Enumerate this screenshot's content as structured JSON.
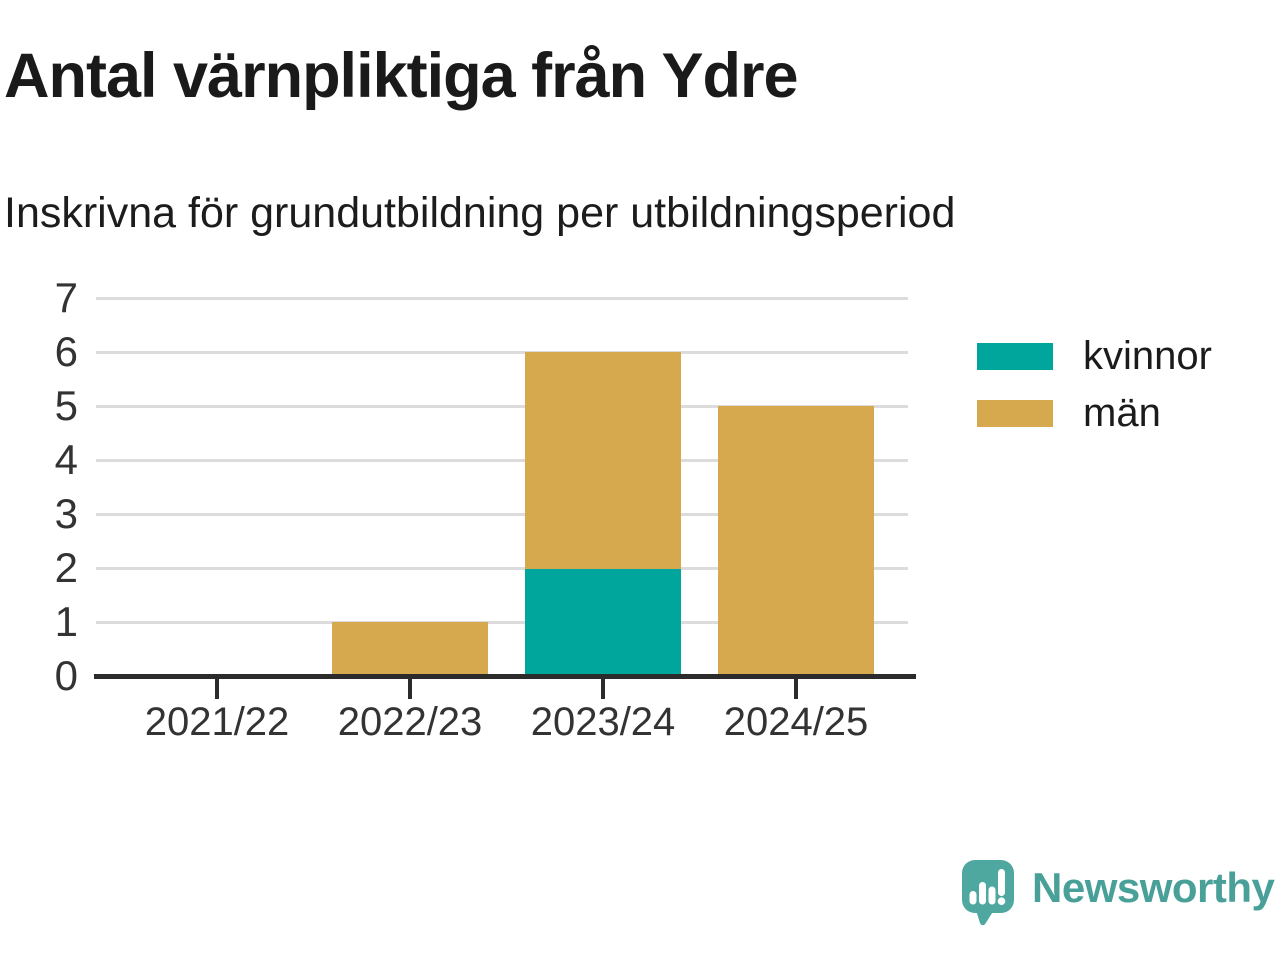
{
  "title": "Antal värnpliktiga från Ydre",
  "subtitle": "Inskrivna för grundutbildning per utbildningsperiod",
  "chart_data": {
    "type": "bar",
    "stacked": true,
    "title": "Antal värnpliktiga från Ydre",
    "subtitle": "Inskrivna för grundutbildning per utbildningsperiod",
    "categories": [
      "2021/22",
      "2022/23",
      "2023/24",
      "2024/25"
    ],
    "series": [
      {
        "name": "kvinnor",
        "color": "#00A69B",
        "values": [
          0,
          0,
          2,
          0
        ]
      },
      {
        "name": "män",
        "color": "#D7A94F",
        "values": [
          0,
          1,
          4,
          5
        ]
      }
    ],
    "totals": [
      0,
      1,
      6,
      5
    ],
    "ylim": [
      0,
      7
    ],
    "yticks": [
      0,
      1,
      2,
      3,
      4,
      5,
      6,
      7
    ],
    "xlabel": "",
    "ylabel": "",
    "grid": true,
    "legend_position": "right"
  },
  "branding": {
    "logo_text": "Newsworthy",
    "logo_color": "#49A099",
    "logo_icon": "speech-bubble-bar-chart-exclamation"
  }
}
